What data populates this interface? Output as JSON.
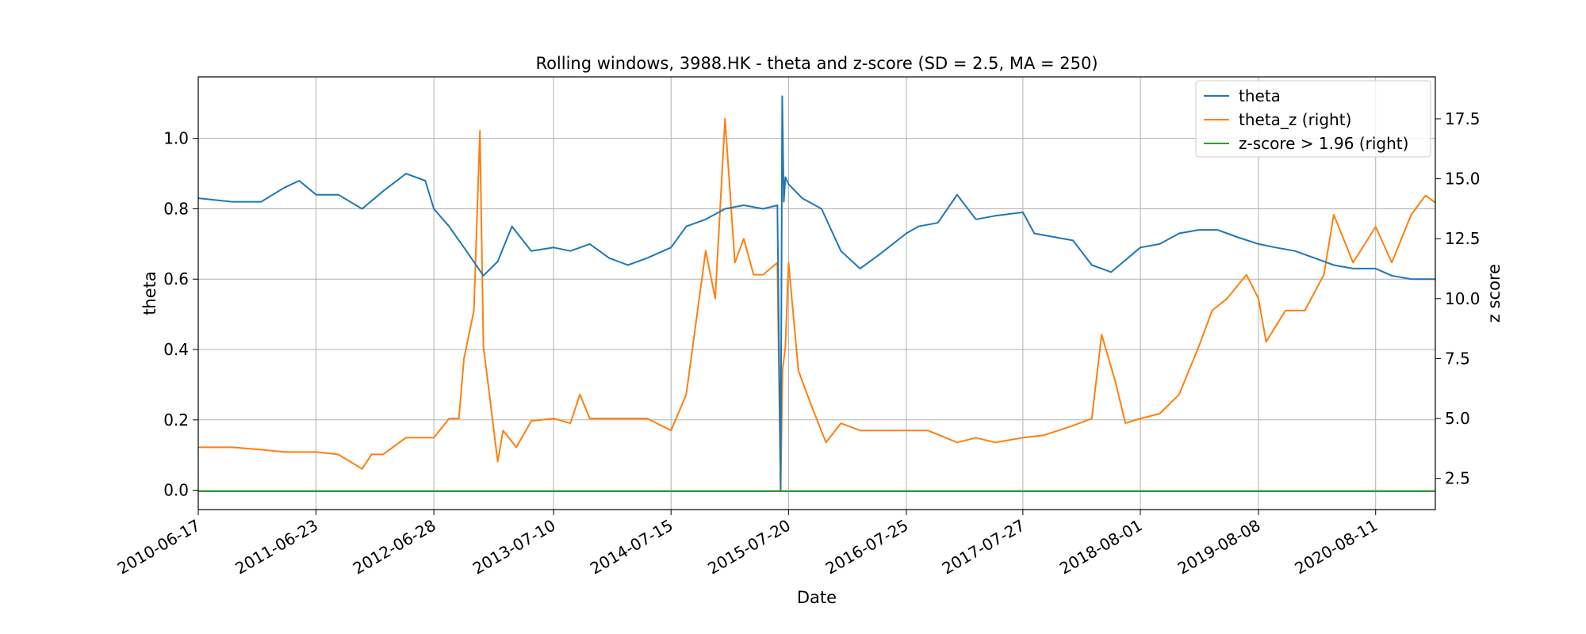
{
  "chart_data": {
    "type": "line",
    "title": "Rolling windows, 3988.HK - theta and z-score (SD = 2.5, MA = 250)",
    "xlabel": "Date",
    "ylabel": "theta",
    "ylabel_right": "z score",
    "x_tick_labels": [
      "2010-06-17",
      "2011-06-23",
      "2012-06-28",
      "2013-07-10",
      "2014-07-15",
      "2015-07-20",
      "2016-07-25",
      "2017-07-27",
      "2018-08-01",
      "2019-08-08",
      "2020-08-11"
    ],
    "xlim": [
      "2010-06-17",
      "2021-02-15"
    ],
    "ylim_left": [
      -0.055,
      1.175
    ],
    "ylim_right": [
      1.2,
      19.25
    ],
    "yticks_left": [
      0.0,
      0.2,
      0.4,
      0.6,
      0.8,
      1.0
    ],
    "yticks_right": [
      2.5,
      5.0,
      7.5,
      10.0,
      12.5,
      15.0,
      17.5
    ],
    "grid": true,
    "legend_position": "upper right",
    "colors": {
      "theta": "#1f77b4",
      "theta_z": "#ff7f0e",
      "threshold": "#2ca02c"
    },
    "series": [
      {
        "name": "theta",
        "axis": "left",
        "x": [
          "2010-06-17",
          "2010-10-01",
          "2011-01-01",
          "2011-03-15",
          "2011-05-01",
          "2011-06-23",
          "2011-09-01",
          "2011-11-15",
          "2012-01-20",
          "2012-04-01",
          "2012-06-01",
          "2012-06-28",
          "2012-08-15",
          "2012-10-01",
          "2012-12-01",
          "2013-01-15",
          "2013-03-01",
          "2013-05-01",
          "2013-07-10",
          "2013-09-01",
          "2013-11-01",
          "2014-01-01",
          "2014-03-01",
          "2014-05-01",
          "2014-07-15",
          "2014-09-01",
          "2014-11-01",
          "2015-01-01",
          "2015-03-01",
          "2015-05-01",
          "2015-06-15",
          "2015-06-25",
          "2015-06-30",
          "2015-07-05",
          "2015-07-10",
          "2015-07-20",
          "2015-09-01",
          "2015-11-01",
          "2016-01-01",
          "2016-03-01",
          "2016-05-01",
          "2016-07-25",
          "2016-09-01",
          "2016-11-01",
          "2017-01-01",
          "2017-03-01",
          "2017-05-01",
          "2017-07-27",
          "2017-09-01",
          "2017-11-01",
          "2018-01-01",
          "2018-03-01",
          "2018-05-01",
          "2018-08-01",
          "2018-10-01",
          "2018-12-01",
          "2019-02-01",
          "2019-04-01",
          "2019-06-01",
          "2019-08-08",
          "2019-10-01",
          "2019-12-01",
          "2020-02-01",
          "2020-04-01",
          "2020-06-01",
          "2020-08-11",
          "2020-10-01",
          "2020-12-01",
          "2021-02-15"
        ],
        "values": [
          0.83,
          0.82,
          0.82,
          0.86,
          0.88,
          0.84,
          0.84,
          0.8,
          0.85,
          0.9,
          0.88,
          0.8,
          0.75,
          0.69,
          0.61,
          0.65,
          0.75,
          0.68,
          0.69,
          0.68,
          0.7,
          0.66,
          0.64,
          0.66,
          0.69,
          0.75,
          0.77,
          0.8,
          0.81,
          0.8,
          0.81,
          0.0,
          1.12,
          0.82,
          0.89,
          0.87,
          0.83,
          0.8,
          0.68,
          0.63,
          0.67,
          0.73,
          0.75,
          0.76,
          0.84,
          0.77,
          0.78,
          0.79,
          0.73,
          0.72,
          0.71,
          0.64,
          0.62,
          0.69,
          0.7,
          0.73,
          0.74,
          0.74,
          0.72,
          0.7,
          0.69,
          0.68,
          0.66,
          0.64,
          0.63,
          0.63,
          0.61,
          0.6,
          0.6
        ]
      },
      {
        "name": "theta_z (right)",
        "axis": "right",
        "x": [
          "2010-06-17",
          "2010-10-01",
          "2011-01-01",
          "2011-03-15",
          "2011-06-23",
          "2011-09-01",
          "2011-11-15",
          "2011-12-15",
          "2012-01-20",
          "2012-04-01",
          "2012-06-28",
          "2012-08-15",
          "2012-09-15",
          "2012-10-01",
          "2012-11-01",
          "2012-11-20",
          "2012-12-01",
          "2012-12-20",
          "2013-01-15",
          "2013-02-01",
          "2013-03-15",
          "2013-05-01",
          "2013-07-10",
          "2013-09-01",
          "2013-10-01",
          "2013-11-01",
          "2014-01-01",
          "2014-03-01",
          "2014-05-01",
          "2014-07-15",
          "2014-09-01",
          "2014-11-01",
          "2014-12-01",
          "2015-01-01",
          "2015-02-01",
          "2015-03-01",
          "2015-04-01",
          "2015-05-01",
          "2015-06-15",
          "2015-06-25",
          "2015-07-01",
          "2015-07-10",
          "2015-07-20",
          "2015-08-20",
          "2015-10-01",
          "2015-11-15",
          "2016-01-01",
          "2016-03-01",
          "2016-05-01",
          "2016-07-25",
          "2016-10-01",
          "2017-01-01",
          "2017-03-01",
          "2017-05-01",
          "2017-07-27",
          "2017-10-01",
          "2018-01-01",
          "2018-03-01",
          "2018-04-01",
          "2018-05-15",
          "2018-06-15",
          "2018-08-01",
          "2018-10-01",
          "2018-12-01",
          "2019-02-01",
          "2019-03-15",
          "2019-05-01",
          "2019-07-01",
          "2019-08-08",
          "2019-09-01",
          "2019-11-01",
          "2020-01-01",
          "2020-03-01",
          "2020-04-01",
          "2020-06-01",
          "2020-08-11",
          "2020-10-01",
          "2020-12-01",
          "2021-01-15",
          "2021-02-15"
        ],
        "values": [
          3.8,
          3.8,
          3.7,
          3.6,
          3.6,
          3.5,
          2.9,
          3.5,
          3.5,
          4.2,
          4.2,
          5.0,
          5.0,
          7.5,
          9.5,
          17.0,
          8.0,
          6.0,
          3.2,
          4.5,
          3.8,
          4.9,
          5.0,
          4.8,
          6.0,
          5.0,
          5.0,
          5.0,
          5.0,
          4.5,
          6.0,
          12.0,
          10.0,
          17.5,
          11.5,
          12.5,
          11.0,
          11.0,
          11.5,
          2.0,
          7.0,
          8.0,
          11.5,
          7.0,
          5.5,
          4.0,
          4.8,
          4.5,
          4.5,
          4.5,
          4.5,
          4.0,
          4.2,
          4.0,
          4.2,
          4.3,
          4.7,
          5.0,
          8.5,
          6.5,
          4.8,
          5.0,
          5.2,
          6.0,
          8.0,
          9.5,
          10.0,
          11.0,
          10.0,
          8.2,
          9.5,
          9.5,
          11.0,
          13.5,
          11.5,
          13.0,
          11.5,
          13.5,
          14.3,
          14.0
        ]
      },
      {
        "name": "z-score > 1.96 (right)",
        "axis": "right",
        "x": [
          "2010-06-17",
          "2021-02-15"
        ],
        "values": [
          1.96,
          1.96
        ]
      }
    ]
  }
}
